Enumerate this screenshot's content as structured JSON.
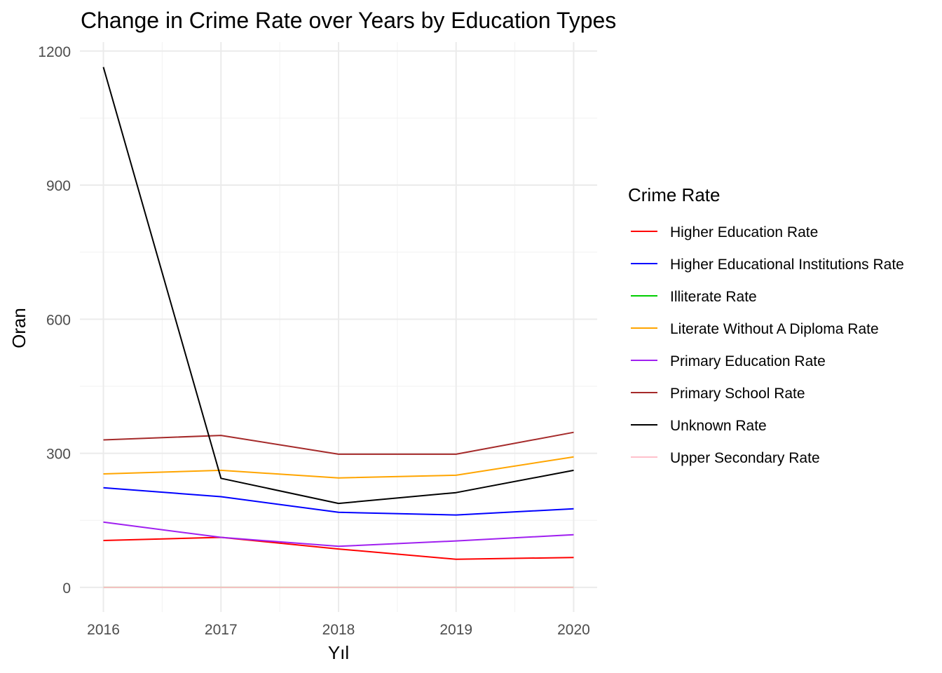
{
  "chart_data": {
    "type": "line",
    "title": "Change in Crime Rate over Years by Education Types",
    "xlabel": "Yıl",
    "ylabel": "Oran",
    "x": [
      2016,
      2017,
      2018,
      2019,
      2020
    ],
    "xlim": [
      2015.8,
      2020.2
    ],
    "ylim": [
      -55,
      1220
    ],
    "yticks": [
      0,
      300,
      600,
      900,
      1200
    ],
    "grid": true,
    "legend": {
      "title": "Crime Rate",
      "position": "right"
    },
    "series": [
      {
        "name": "Higher Education Rate",
        "color": "#FF0000",
        "values": [
          105,
          112,
          86,
          63,
          67
        ]
      },
      {
        "name": "Higher Educational Institutions Rate",
        "color": "#0000FF",
        "values": [
          223,
          203,
          168,
          162,
          176
        ]
      },
      {
        "name": "Illiterate Rate",
        "color": "#00CD00",
        "values": [
          0,
          0,
          0,
          0,
          0
        ]
      },
      {
        "name": "Literate Without A Diploma Rate",
        "color": "#FFA500",
        "values": [
          254,
          262,
          245,
          251,
          292
        ]
      },
      {
        "name": "Primary Education Rate",
        "color": "#A020F0",
        "values": [
          146,
          112,
          92,
          104,
          118
        ]
      },
      {
        "name": "Primary School Rate",
        "color": "#A52A2A",
        "values": [
          330,
          340,
          298,
          298,
          347
        ]
      },
      {
        "name": "Unknown Rate",
        "color": "#000000",
        "values": [
          1164,
          244,
          188,
          212,
          262
        ]
      },
      {
        "name": "Upper Secondary Rate",
        "color": "#FFC0CB",
        "values": [
          0,
          0,
          0,
          0,
          0
        ]
      }
    ]
  }
}
